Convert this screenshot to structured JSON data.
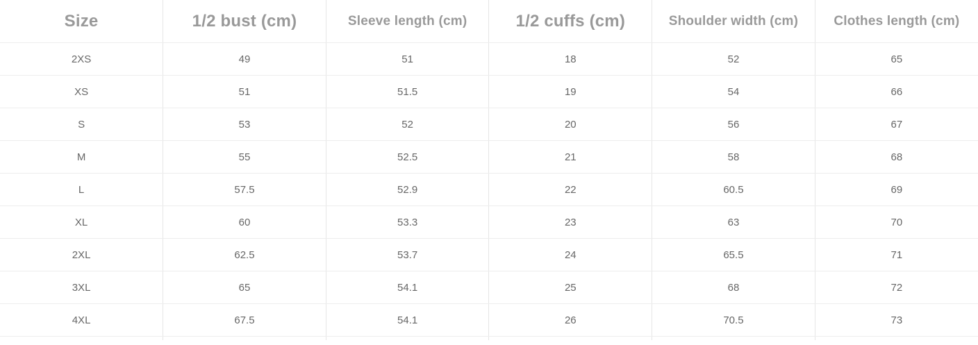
{
  "chart_data": {
    "type": "table",
    "columns": [
      "Size",
      "1/2 bust (cm)",
      "Sleeve length (cm)",
      "1/2 cuffs (cm)",
      "Shoulder width (cm)",
      "Clothes length (cm)"
    ],
    "rows": [
      [
        "2XS",
        "49",
        "51",
        "18",
        "52",
        "65"
      ],
      [
        "XS",
        "51",
        "51.5",
        "19",
        "54",
        "66"
      ],
      [
        "S",
        "53",
        "52",
        "20",
        "56",
        "67"
      ],
      [
        "M",
        "55",
        "52.5",
        "21",
        "58",
        "68"
      ],
      [
        "L",
        "57.5",
        "52.9",
        "22",
        "60.5",
        "69"
      ],
      [
        "XL",
        "60",
        "53.3",
        "23",
        "63",
        "70"
      ],
      [
        "2XL",
        "62.5",
        "53.7",
        "24",
        "65.5",
        "71"
      ],
      [
        "3XL",
        "65",
        "54.1",
        "25",
        "68",
        "72"
      ],
      [
        "4XL",
        "67.5",
        "54.1",
        "26",
        "70.5",
        "73"
      ]
    ],
    "layout": {
      "grid": "row and column rules",
      "header_position": "top",
      "column_count": 6,
      "row_count": 9
    }
  },
  "colors": {
    "background": "#ffffff",
    "header_text": "#999999",
    "cell_text": "#666666",
    "vertical_rule": "#e6e6e6",
    "horizontal_rule": "#ededed"
  }
}
